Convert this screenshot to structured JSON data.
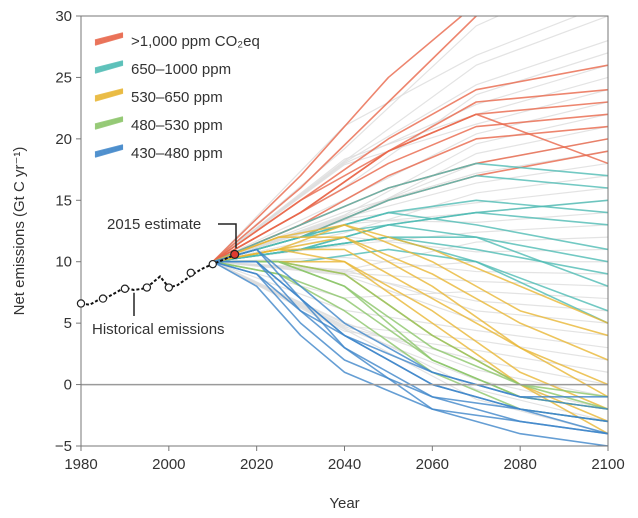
{
  "chart_data": {
    "type": "line",
    "title": "",
    "xlabel": "Year",
    "ylabel": "Net emissions (Gt C yr⁻¹)",
    "xlim": [
      1980,
      2100
    ],
    "ylim": [
      -5,
      30
    ],
    "xticks": [
      1980,
      2000,
      2020,
      2040,
      2060,
      2080,
      2100
    ],
    "yticks": [
      -5,
      0,
      5,
      10,
      15,
      20,
      25,
      30
    ],
    "grid": false,
    "legend_position": "top-left",
    "legend": [
      {
        "label": ">1,000 ppm CO₂eq",
        "color": "#e8664a"
      },
      {
        "label": "650–1000 ppm",
        "color": "#4fbcb4"
      },
      {
        "label": "530–650 ppm",
        "color": "#e8b634"
      },
      {
        "label": "480–530 ppm",
        "color": "#8cc56a"
      },
      {
        "label": "430–480 ppm",
        "color": "#3f86c9"
      }
    ],
    "annotations": {
      "estimate_2015": "2015 estimate",
      "historical": "Historical emissions"
    },
    "historical": {
      "x": [
        1980,
        1982,
        1984,
        1986,
        1988,
        1990,
        1992,
        1994,
        1996,
        1998,
        2000,
        2002,
        2004,
        2006,
        2008,
        2010,
        2012,
        2014,
        2015
      ],
      "y": [
        6.6,
        6.5,
        6.9,
        7.1,
        7.5,
        7.9,
        7.7,
        7.8,
        8.2,
        8.8,
        7.9,
        8.1,
        8.6,
        9.1,
        9.5,
        9.8,
        10.1,
        10.4,
        10.6
      ]
    },
    "historical_markers": {
      "x": [
        1980,
        1985,
        1990,
        1995,
        2000,
        2005,
        2010,
        2015
      ],
      "y": [
        6.6,
        7.0,
        7.8,
        7.9,
        7.9,
        9.1,
        9.8,
        10.6
      ]
    },
    "series": [
      {
        "group": 0,
        "x": [
          2010,
          2030,
          2050,
          2070,
          2100
        ],
        "y": [
          10,
          17,
          25,
          31,
          38
        ]
      },
      {
        "group": 0,
        "x": [
          2010,
          2030,
          2050,
          2070,
          2100
        ],
        "y": [
          10,
          16,
          23,
          30,
          36
        ]
      },
      {
        "group": 0,
        "x": [
          2010,
          2030,
          2050,
          2070,
          2100
        ],
        "y": [
          10,
          15,
          20,
          24,
          26
        ]
      },
      {
        "group": 0,
        "x": [
          2010,
          2030,
          2050,
          2070,
          2100
        ],
        "y": [
          10,
          14,
          19,
          23,
          24
        ]
      },
      {
        "group": 0,
        "x": [
          2010,
          2030,
          2050,
          2070,
          2100
        ],
        "y": [
          10,
          15,
          19,
          22,
          23
        ]
      },
      {
        "group": 0,
        "x": [
          2010,
          2030,
          2050,
          2070,
          2100
        ],
        "y": [
          10,
          14,
          18,
          21,
          22
        ]
      },
      {
        "group": 0,
        "x": [
          2010,
          2030,
          2050,
          2070,
          2100
        ],
        "y": [
          10,
          13,
          17,
          20,
          21
        ]
      },
      {
        "group": 0,
        "x": [
          2010,
          2030,
          2050,
          2070,
          2100
        ],
        "y": [
          10,
          14,
          19,
          22,
          18
        ]
      },
      {
        "group": 0,
        "x": [
          2010,
          2030,
          2050,
          2070,
          2100
        ],
        "y": [
          10,
          13,
          16,
          18,
          20
        ]
      },
      {
        "group": 0,
        "x": [
          2010,
          2030,
          2050,
          2070,
          2100
        ],
        "y": [
          10,
          12,
          15,
          17,
          19
        ]
      },
      {
        "group": 1,
        "x": [
          2010,
          2030,
          2050,
          2070,
          2100
        ],
        "y": [
          10,
          13,
          16,
          18,
          17
        ]
      },
      {
        "group": 1,
        "x": [
          2010,
          2030,
          2050,
          2070,
          2100
        ],
        "y": [
          10,
          12,
          15,
          17,
          16
        ]
      },
      {
        "group": 1,
        "x": [
          2010,
          2030,
          2050,
          2070,
          2100
        ],
        "y": [
          10,
          12,
          14,
          15,
          14
        ]
      },
      {
        "group": 1,
        "x": [
          2010,
          2030,
          2050,
          2070,
          2100
        ],
        "y": [
          10,
          11,
          13,
          14,
          13
        ]
      },
      {
        "group": 1,
        "x": [
          2010,
          2030,
          2050,
          2070,
          2100
        ],
        "y": [
          10,
          12,
          14,
          13,
          11
        ]
      },
      {
        "group": 1,
        "x": [
          2010,
          2030,
          2050,
          2070,
          2100
        ],
        "y": [
          10,
          11,
          12,
          12,
          10
        ]
      },
      {
        "group": 1,
        "x": [
          2010,
          2030,
          2050,
          2070,
          2100
        ],
        "y": [
          10,
          11,
          12,
          11,
          9
        ]
      },
      {
        "group": 1,
        "x": [
          2010,
          2030,
          2050,
          2070,
          2100
        ],
        "y": [
          10,
          11,
          13,
          14,
          15
        ]
      },
      {
        "group": 1,
        "x": [
          2010,
          2030,
          2050,
          2070,
          2100
        ],
        "y": [
          10,
          12,
          13,
          12,
          8
        ]
      },
      {
        "group": 1,
        "x": [
          2010,
          2030,
          2050,
          2070,
          2100
        ],
        "y": [
          10,
          10,
          11,
          10,
          6
        ]
      },
      {
        "group": 1,
        "x": [
          2010,
          2030,
          2050,
          2070,
          2100
        ],
        "y": [
          10,
          11,
          12,
          10,
          5
        ]
      },
      {
        "group": 2,
        "x": [
          2010,
          2025,
          2040,
          2060,
          2080,
          2100
        ],
        "y": [
          10,
          11,
          12,
          9,
          5,
          2
        ]
      },
      {
        "group": 2,
        "x": [
          2010,
          2025,
          2040,
          2060,
          2080,
          2100
        ],
        "y": [
          10,
          11,
          11,
          7,
          3,
          0
        ]
      },
      {
        "group": 2,
        "x": [
          2010,
          2025,
          2040,
          2060,
          2080,
          2100
        ],
        "y": [
          10,
          12,
          12,
          8,
          3,
          -1
        ]
      },
      {
        "group": 2,
        "x": [
          2010,
          2025,
          2040,
          2060,
          2080,
          2100
        ],
        "y": [
          10,
          11,
          10,
          6,
          1,
          -2
        ]
      },
      {
        "group": 2,
        "x": [
          2010,
          2025,
          2040,
          2060,
          2080,
          2100
        ],
        "y": [
          10,
          10,
          9,
          4,
          0,
          -3
        ]
      },
      {
        "group": 2,
        "x": [
          2010,
          2025,
          2040,
          2060,
          2080,
          2100
        ],
        "y": [
          10,
          12,
          13,
          10,
          6,
          4
        ]
      },
      {
        "group": 2,
        "x": [
          2010,
          2025,
          2040,
          2060,
          2080,
          2100
        ],
        "y": [
          10,
          11,
          13,
          11,
          8,
          5
        ]
      },
      {
        "group": 2,
        "x": [
          2010,
          2025,
          2040,
          2060,
          2080,
          2100
        ],
        "y": [
          10,
          10,
          10,
          5,
          0,
          -4
        ]
      },
      {
        "group": 3,
        "x": [
          2010,
          2025,
          2040,
          2060,
          2080,
          2100
        ],
        "y": [
          10,
          10,
          8,
          3,
          0,
          -2
        ]
      },
      {
        "group": 3,
        "x": [
          2010,
          2025,
          2040,
          2060,
          2080,
          2100
        ],
        "y": [
          10,
          9,
          7,
          2,
          -1,
          -2
        ]
      },
      {
        "group": 3,
        "x": [
          2010,
          2025,
          2040,
          2060,
          2080,
          2100
        ],
        "y": [
          10,
          10,
          9,
          4,
          0,
          -1
        ]
      },
      {
        "group": 3,
        "x": [
          2010,
          2025,
          2040,
          2060,
          2080,
          2100
        ],
        "y": [
          10,
          9,
          6,
          1,
          -2,
          -3
        ]
      },
      {
        "group": 3,
        "x": [
          2010,
          2025,
          2040,
          2060,
          2080,
          2100
        ],
        "y": [
          10,
          10,
          8,
          2,
          -1,
          -2
        ]
      },
      {
        "group": 4,
        "x": [
          2010,
          2020,
          2030,
          2040,
          2060,
          2080,
          2100
        ],
        "y": [
          10,
          10,
          7,
          4,
          0,
          -2,
          -3
        ]
      },
      {
        "group": 4,
        "x": [
          2010,
          2020,
          2030,
          2040,
          2060,
          2080,
          2100
        ],
        "y": [
          10,
          9,
          6,
          3,
          -1,
          -2,
          -3
        ]
      },
      {
        "group": 4,
        "x": [
          2010,
          2020,
          2030,
          2040,
          2060,
          2080,
          2100
        ],
        "y": [
          10,
          11,
          8,
          5,
          1,
          -1,
          -2
        ]
      },
      {
        "group": 4,
        "x": [
          2010,
          2020,
          2030,
          2040,
          2060,
          2080,
          2100
        ],
        "y": [
          10,
          9,
          5,
          2,
          -1,
          -3,
          -4
        ]
      },
      {
        "group": 4,
        "x": [
          2010,
          2020,
          2030,
          2040,
          2060,
          2080,
          2100
        ],
        "y": [
          10,
          8,
          4,
          1,
          -2,
          -3,
          -4
        ]
      },
      {
        "group": 4,
        "x": [
          2010,
          2020,
          2030,
          2040,
          2060,
          2080,
          2100
        ],
        "y": [
          10,
          10,
          6,
          4,
          0,
          -2,
          -4
        ]
      },
      {
        "group": 4,
        "x": [
          2010,
          2020,
          2030,
          2040,
          2060,
          2080,
          2100
        ],
        "y": [
          10,
          10,
          7,
          3,
          -2,
          -4,
          -5
        ]
      },
      {
        "group": 4,
        "x": [
          2010,
          2020,
          2030,
          2040,
          2060,
          2080,
          2100
        ],
        "y": [
          10,
          11,
          7,
          4,
          1,
          -1,
          -1
        ]
      }
    ]
  }
}
